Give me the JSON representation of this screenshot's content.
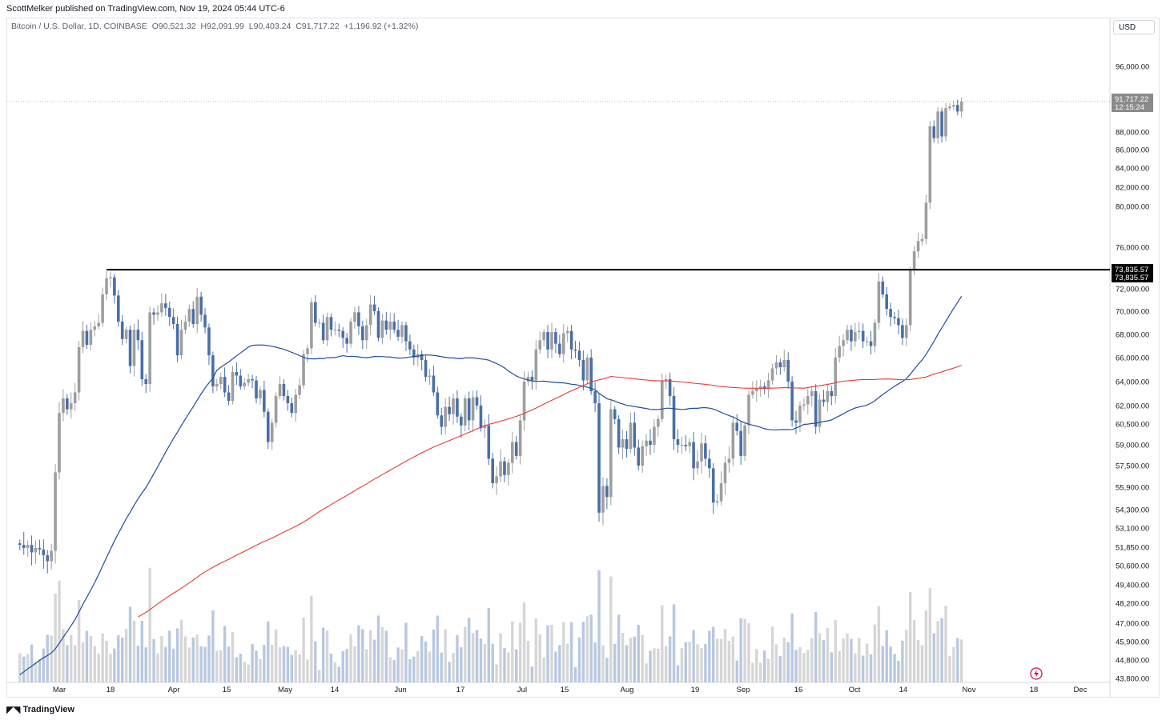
{
  "header": {
    "publisher": "ScottMelker published on TradingView.com, Nov 19, 2024 05:44 UTC-6"
  },
  "legend": {
    "symbol": "Bitcoin / U.S. Dollar, 1D, COINBASE",
    "o_label": "O",
    "o_value": "90,521.32",
    "h_label": "H",
    "h_value": "92,091.99",
    "l_label": "L",
    "l_value": "90,403.24",
    "c_label": "C",
    "c_value": "91,717.22",
    "change": "+1,196.92 (+1.32%)"
  },
  "currency": "USD",
  "price_tag": {
    "price": "91,717.22",
    "countdown": "12:15:24"
  },
  "level_tag": {
    "line1": "73,835.57",
    "line2": "73,835.57"
  },
  "footer": {
    "brand": "TradingView",
    "logo_icon": "tradingview-logo-icon"
  },
  "colors": {
    "up": "#9e9e9e",
    "down": "#4a6fa5",
    "vol_up": "#d6d6d6",
    "vol_down": "#b8c8e0",
    "ma_blue": "#1f4e9c",
    "ma_red": "#e53935",
    "level": "#000000",
    "plot_bg": "#f4f4f4"
  },
  "chart_data": {
    "type": "candlestick",
    "title": "Bitcoin / U.S. Dollar, 1D, COINBASE",
    "xlabel": "",
    "ylabel": "",
    "ylim": [
      43800,
      98500
    ],
    "yticks": [
      "96,000.00",
      "88,000.00",
      "86,000.00",
      "84,000.00",
      "82,000.00",
      "80,000.00",
      "76,000.00",
      "72,000.00",
      "70,000.00",
      "68,000.00",
      "66,000.00",
      "64,000.00",
      "62,000.00",
      "60,500.00",
      "59,000.00",
      "57,500.00",
      "55,900.00",
      "54,300.00",
      "53,100.00",
      "51,850.00",
      "50,600.00",
      "49,400.00",
      "48,200.00",
      "47,000.00",
      "45,900.00",
      "44,800.00",
      "43,800.00"
    ],
    "x_tick_labels": [
      "Mar",
      "18",
      "Apr",
      "15",
      "May",
      "14",
      "Jun",
      "17",
      "Jul",
      "15",
      "Aug",
      "19",
      "Sep",
      "16",
      "Oct",
      "14",
      "Nov",
      "18",
      "Dec"
    ],
    "start_date": "2024-02-20",
    "horizontal_level": 73835.57,
    "last_close": 91717.22,
    "closes": [
      52000,
      51800,
      52000,
      51500,
      51800,
      51700,
      51300,
      50900,
      51600,
      57000,
      61400,
      62600,
      61700,
      62200,
      63100,
      66900,
      68300,
      67100,
      68400,
      68700,
      69000,
      71500,
      73000,
      73100,
      71400,
      69100,
      67600,
      68400,
      65300,
      68400,
      67500,
      64200,
      63800,
      69900,
      69700,
      69900,
      70700,
      70300,
      69500,
      68900,
      66200,
      68400,
      69100,
      70200,
      68900,
      71300,
      69700,
      68600,
      66200,
      63600,
      63800,
      64400,
      63100,
      62400,
      64800,
      64500,
      63600,
      63900,
      64200,
      64100,
      62600,
      63300,
      61500,
      59200,
      60600,
      62800,
      63800,
      62800,
      62200,
      61400,
      62900,
      63700,
      66300,
      66800,
      70800,
      69000,
      69000,
      67500,
      69500,
      68400,
      68400,
      68300,
      67700,
      67200,
      69100,
      69900,
      68700,
      67500,
      68800,
      70600,
      70000,
      67700,
      69200,
      68400,
      69100,
      68400,
      67800,
      68800,
      67400,
      66700,
      66000,
      66300,
      65800,
      64400,
      64500,
      63100,
      61200,
      60300,
      61900,
      61300,
      62600,
      61100,
      60400,
      62600,
      60800,
      62700,
      62000,
      60200,
      60400,
      58000,
      56200,
      56700,
      57800,
      56800,
      57700,
      59200,
      58200,
      60800,
      64000,
      64400,
      64100,
      66700,
      67500,
      68200,
      66700,
      68200,
      67200,
      66300,
      68100,
      68300,
      66700,
      66600,
      65800,
      64100,
      66000,
      63200,
      62200,
      54100,
      56000,
      55200,
      61700,
      60900,
      58800,
      59400,
      58700,
      60600,
      58800,
      57500,
      58900,
      59300,
      59000,
      60300,
      60900,
      64100,
      64200,
      62800,
      59400,
      59000,
      59000,
      58900,
      59200,
      57300,
      57800,
      59100,
      58000,
      57300,
      54800,
      54900,
      56200,
      57700,
      58000,
      60600,
      60000,
      58200,
      60400,
      62900,
      63200,
      63400,
      63600,
      63400,
      64100,
      65100,
      65600,
      65200,
      65800,
      64000,
      60800,
      60600,
      62000,
      62100,
      62800,
      63200,
      60300,
      62500,
      62300,
      63200,
      62800,
      66000,
      67000,
      67500,
      68400,
      67400,
      68200,
      68300,
      67400,
      67400,
      67000,
      69000,
      72700,
      71500,
      70200,
      69500,
      69400,
      68800,
      67700,
      68800,
      73800,
      75600,
      76600,
      76800,
      80400,
      88700,
      87300,
      90500,
      87500,
      90900,
      91100,
      91300,
      90500,
      91700
    ],
    "ma_blue_endpoint": 71500,
    "ma_red_endpoint": 65000
  }
}
